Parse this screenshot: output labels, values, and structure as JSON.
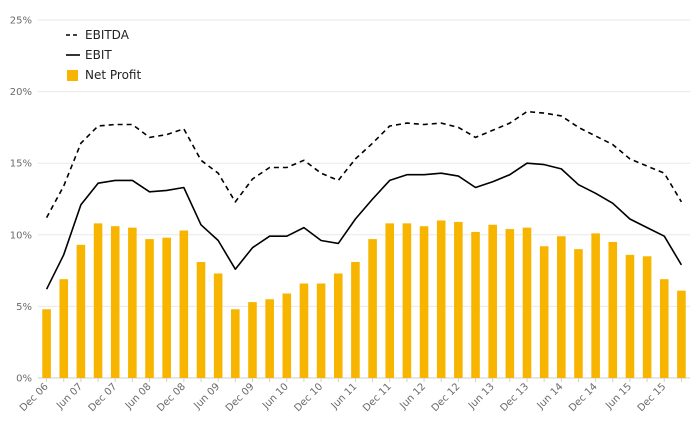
{
  "chart_data": {
    "type": "bar",
    "x_tick_labels": [
      "Dec 06",
      "Jun 07",
      "Dec 07",
      "Jun 08",
      "Dec 08",
      "Jun 09",
      "Dec 09",
      "Jun 10",
      "Dec 10",
      "Jun 11",
      "Dec 11",
      "Jun 12",
      "Dec 12",
      "Jun 13",
      "Dec 13",
      "Jun 14",
      "Dec 14",
      "Jun 15",
      "Dec 15"
    ],
    "y_ticks": [
      "0%",
      "5%",
      "10%",
      "15%",
      "20%",
      "25%"
    ],
    "ylim": [
      0,
      25
    ],
    "grid": true,
    "legend_position": "top-left",
    "series": [
      {
        "name": "EBITDA",
        "type": "line",
        "style": "dashed",
        "color": "#000000",
        "values": [
          11.2,
          13.4,
          16.4,
          17.6,
          17.7,
          17.7,
          16.8,
          17.0,
          17.4,
          15.2,
          14.3,
          12.3,
          13.9,
          14.7,
          14.7,
          15.2,
          14.3,
          13.8,
          15.3,
          16.4,
          17.6,
          17.8,
          17.7,
          17.8,
          17.5,
          16.8,
          17.3,
          17.8,
          18.6,
          18.5,
          18.3,
          17.5,
          16.9,
          16.3,
          15.3,
          14.8,
          14.3,
          12.3
        ]
      },
      {
        "name": "EBIT",
        "type": "line",
        "style": "solid",
        "color": "#000000",
        "values": [
          6.2,
          8.6,
          12.1,
          13.6,
          13.8,
          13.8,
          13.0,
          13.1,
          13.3,
          10.7,
          9.6,
          7.6,
          9.1,
          9.9,
          9.9,
          10.5,
          9.6,
          9.4,
          11.1,
          12.5,
          13.8,
          14.2,
          14.2,
          14.3,
          14.1,
          13.3,
          13.7,
          14.2,
          15.0,
          14.9,
          14.6,
          13.5,
          12.9,
          12.2,
          11.1,
          10.5,
          9.9,
          7.9
        ]
      },
      {
        "name": "Net Profit",
        "type": "bar",
        "color": "#f7b500",
        "values": [
          4.8,
          6.9,
          9.3,
          10.8,
          10.6,
          10.5,
          9.7,
          9.8,
          10.3,
          8.1,
          7.3,
          4.8,
          5.3,
          5.5,
          5.9,
          6.6,
          6.6,
          7.3,
          8.1,
          9.7,
          10.8,
          10.8,
          10.6,
          11.0,
          10.9,
          10.2,
          10.7,
          10.4,
          10.5,
          9.2,
          9.9,
          9.0,
          10.1,
          9.5,
          8.6,
          8.5,
          6.9,
          6.1
        ]
      }
    ]
  }
}
